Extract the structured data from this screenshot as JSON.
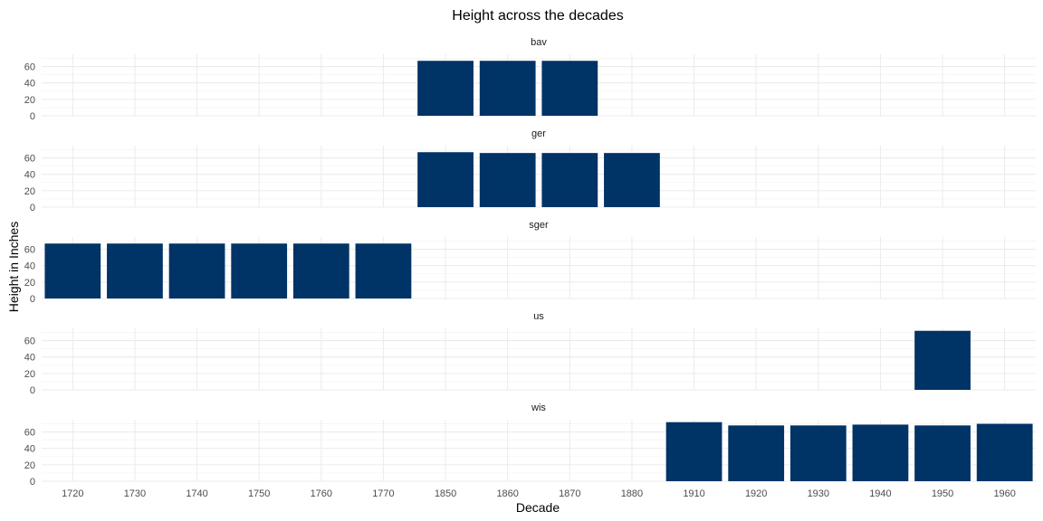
{
  "chart_data": {
    "type": "bar",
    "title": "Height across the decades",
    "xlabel": "Decade",
    "ylabel": "Height in Inches",
    "categories": [
      "1720",
      "1730",
      "1740",
      "1750",
      "1760",
      "1770",
      "1850",
      "1860",
      "1870",
      "1880",
      "1910",
      "1920",
      "1930",
      "1940",
      "1950",
      "1960"
    ],
    "ylim": [
      0,
      75
    ],
    "yticks": [
      0,
      20,
      40,
      60
    ],
    "grid": true,
    "color": "#003366",
    "facets": [
      {
        "name": "bav",
        "values": {
          "1850": 67,
          "1860": 67,
          "1870": 67
        }
      },
      {
        "name": "ger",
        "values": {
          "1850": 67,
          "1860": 66,
          "1870": 66,
          "1880": 66
        }
      },
      {
        "name": "sger",
        "values": {
          "1720": 67,
          "1730": 67,
          "1740": 67,
          "1750": 67,
          "1760": 67,
          "1770": 67
        }
      },
      {
        "name": "us",
        "values": {
          "1950": 72
        }
      },
      {
        "name": "wis",
        "values": {
          "1910": 72,
          "1920": 68,
          "1930": 68,
          "1940": 69,
          "1950": 68,
          "1960": 70
        }
      }
    ]
  }
}
